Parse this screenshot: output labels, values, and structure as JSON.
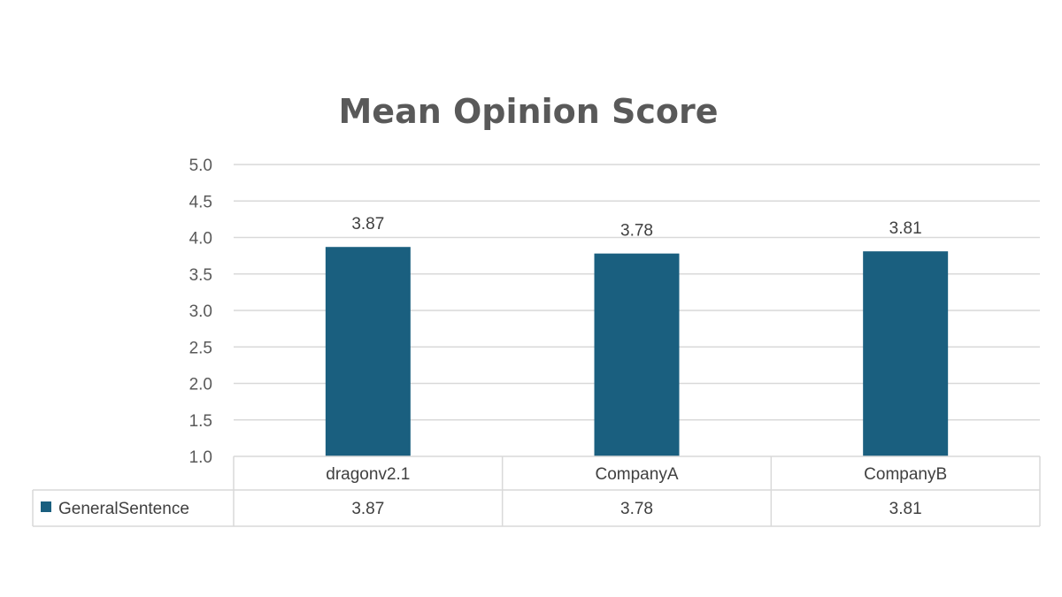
{
  "chart_data": {
    "type": "bar",
    "title": "Mean Opinion Score",
    "categories": [
      "dragonv2.1",
      "CompanyA",
      "CompanyB"
    ],
    "series": [
      {
        "name": "GeneralSentence",
        "values": [
          3.87,
          3.78,
          3.81
        ],
        "color": "#1a5f7f"
      }
    ],
    "ylim": [
      1.0,
      5.0
    ],
    "yticks": [
      "1.0",
      "1.5",
      "2.0",
      "2.5",
      "3.0",
      "3.5",
      "4.0",
      "4.5",
      "5.0"
    ],
    "data_labels": [
      "3.87",
      "3.78",
      "3.81"
    ],
    "table_values": [
      "3.87",
      "3.78",
      "3.81"
    ],
    "grid": true,
    "legend": "data-table"
  },
  "colors": {
    "bar": "#1a5f7f",
    "grid": "#d9d9d9",
    "table_border": "#d9d9d9",
    "title": "#595959"
  }
}
